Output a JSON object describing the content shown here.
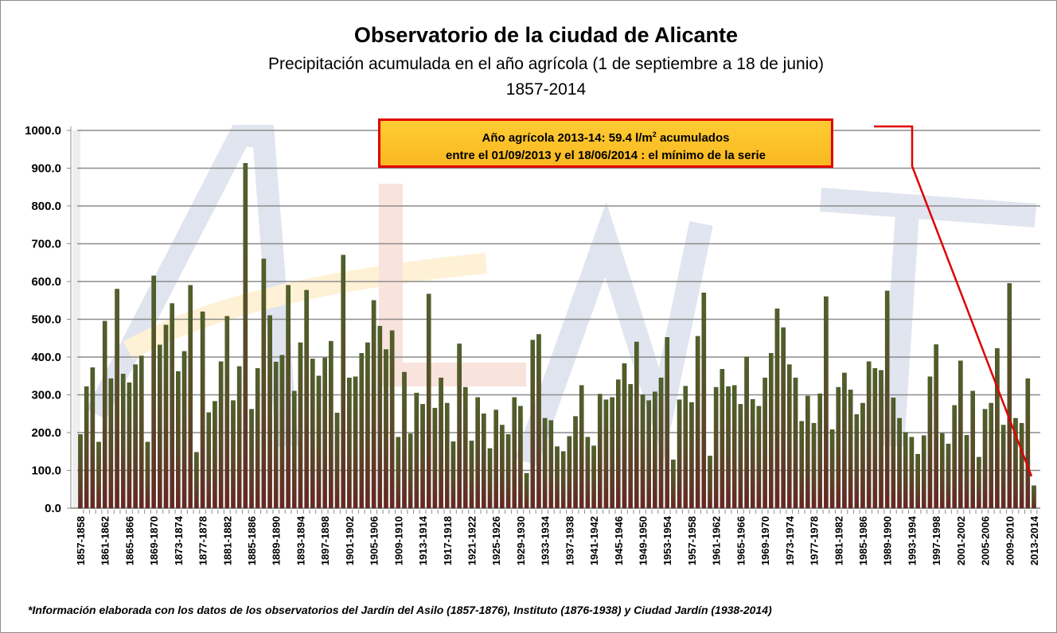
{
  "header": {
    "title": "Observatorio de la ciudad de Alicante",
    "subtitle": "Precipitación acumulada en el año agrícola (1  de septiembre a 18 de junio)",
    "period": "1857-2014"
  },
  "annotation": {
    "line1_pre": "Año agrícola 2013-14:  59.4 l/m",
    "line1_sup": "2",
    "line1_post": " acumulados",
    "line2": "entre el  01/09/2013 y  el 18/06/2014 : el mínimo de la serie"
  },
  "footnote": "*Información elaborada con los datos de los observatorios del Jardín del Asilo (1857-1876), Instituto (1876-1938) y Ciudad Jardín (1938-2014)",
  "colors": {
    "bar_top": "#4f6228",
    "bar_bottom": "#6b2424",
    "grid": "#8c8c8c",
    "annotation_border": "#e00000",
    "annotation_fill": "#ffc000"
  },
  "chart_data": {
    "type": "bar",
    "title": "Observatorio de la ciudad de Alicante",
    "xlabel": "",
    "ylabel": "",
    "ylim": [
      0,
      1000
    ],
    "yticks": [
      "0.0",
      "100.0",
      "200.0",
      "300.0",
      "400.0",
      "500.0",
      "600.0",
      "700.0",
      "800.0",
      "900.0",
      "1000.0"
    ],
    "grid": true,
    "label_every": 4,
    "start_year": 1857,
    "values": [
      195,
      322,
      372,
      175,
      495,
      343,
      580,
      355,
      332,
      380,
      403,
      175,
      615,
      432,
      485,
      542,
      362,
      415,
      590,
      148,
      520,
      253,
      283,
      388,
      508,
      285,
      375,
      913,
      262,
      370,
      660,
      510,
      387,
      405,
      590,
      310,
      438,
      577,
      395,
      350,
      398,
      442,
      252,
      670,
      345,
      348,
      410,
      438,
      550,
      482,
      420,
      470,
      188,
      360,
      197,
      305,
      275,
      567,
      265,
      345,
      278,
      176,
      435,
      320,
      178,
      293,
      250,
      158,
      260,
      220,
      195,
      293,
      270,
      92,
      445,
      460,
      238,
      232,
      163,
      150,
      190,
      243,
      325,
      188,
      165,
      302,
      287,
      293,
      340,
      383,
      328,
      440,
      300,
      285,
      308,
      345,
      452,
      128,
      287,
      323,
      280,
      455,
      570,
      138,
      320,
      368,
      322,
      325,
      275,
      400,
      288,
      270,
      345,
      410,
      528,
      478,
      380,
      345,
      230,
      297,
      225,
      303,
      560,
      208,
      320,
      358,
      313,
      248,
      278,
      388,
      370,
      365,
      575,
      292,
      238,
      200,
      188,
      143,
      192,
      348,
      433,
      198,
      170,
      272,
      390,
      193,
      310,
      135,
      262,
      278,
      423,
      220,
      595,
      238,
      225,
      343,
      59.4
    ]
  }
}
